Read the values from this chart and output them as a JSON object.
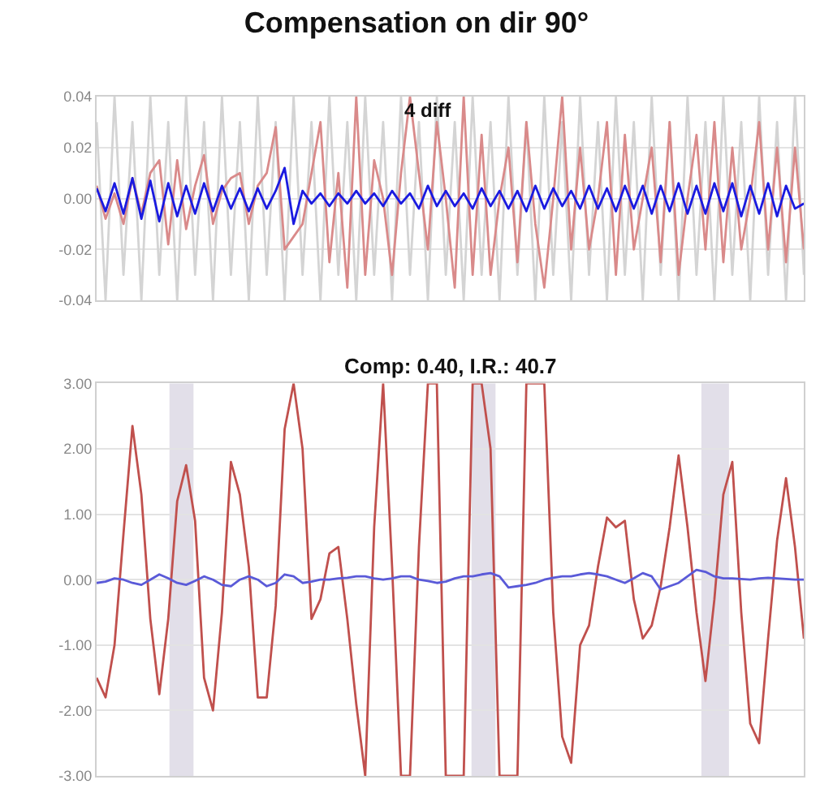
{
  "chart_data": [
    {
      "type": "line",
      "title": "Compensation on dir 90°",
      "annotations": [
        "4 diff"
      ],
      "grid": "y",
      "ylim": [
        -0.04,
        0.04
      ],
      "yticks": [
        {
          "value": -0.04,
          "label": "-0.04"
        },
        {
          "value": -0.02,
          "label": "-0.02"
        },
        {
          "value": 0,
          "label": "0.00"
        },
        {
          "value": 0.02,
          "label": "0.02"
        },
        {
          "value": 0.04,
          "label": "0.04"
        }
      ],
      "categories": [
        null,
        null,
        null,
        null,
        null,
        null,
        null,
        null,
        null,
        null,
        null,
        null,
        null,
        null,
        null,
        null,
        null,
        null,
        null,
        null,
        null,
        null,
        null,
        null,
        null,
        null,
        null,
        null,
        null,
        null,
        null,
        null,
        null,
        null,
        null,
        null,
        null,
        null,
        null,
        null,
        null,
        null,
        null,
        null,
        null,
        null,
        null,
        null,
        null,
        null,
        null,
        null,
        null,
        null,
        null,
        null,
        null,
        null,
        null,
        null,
        null,
        null,
        null,
        null,
        null,
        null,
        null,
        null,
        null,
        null,
        null,
        null,
        null,
        null,
        null,
        null,
        null,
        null,
        null,
        null
      ],
      "series": [
        {
          "color": "#d4d4d4",
          "values": [
            0.03,
            -0.04,
            0.04,
            -0.03,
            0.03,
            -0.04,
            0.04,
            -0.03,
            0.03,
            -0.04,
            0.04,
            -0.03,
            0.03,
            -0.04,
            0.04,
            -0.03,
            0.03,
            -0.04,
            0.04,
            -0.03,
            0.03,
            -0.04,
            0.04,
            -0.03,
            0.03,
            -0.04,
            0.04,
            -0.03,
            0.03,
            -0.04,
            0.04,
            -0.03,
            0.03,
            -0.04,
            0.04,
            -0.03,
            0.03,
            -0.04,
            0.04,
            -0.03,
            0.03,
            -0.04,
            0.04,
            -0.03,
            0.03,
            -0.04,
            0.04,
            -0.03,
            0.03,
            -0.04,
            0.04,
            -0.03,
            0.03,
            -0.04,
            0.04,
            -0.03,
            0.03,
            -0.04,
            0.04,
            -0.03,
            0.03,
            -0.04,
            0.04,
            -0.03,
            0.03,
            -0.04,
            0.04,
            -0.03,
            0.03,
            -0.04,
            0.04,
            -0.03,
            0.03,
            -0.04,
            0.04,
            -0.03,
            0.03,
            -0.04,
            0.04,
            -0.03
          ]
        },
        {
          "color": "#d98a8a",
          "values": [
            0.005,
            -0.008,
            0.002,
            -0.01,
            0.008,
            -0.006,
            0.01,
            0.015,
            -0.018,
            0.015,
            -0.012,
            0.005,
            0.017,
            -0.01,
            0.003,
            0.008,
            0.01,
            -0.01,
            0.005,
            0.01,
            0.028,
            -0.02,
            -0.015,
            -0.01,
            0.01,
            0.03,
            -0.025,
            0.01,
            -0.035,
            0.04,
            -0.03,
            0.015,
            0,
            -0.03,
            0.01,
            0.04,
            0.01,
            -0.02,
            0.03,
            0,
            -0.035,
            0.04,
            -0.03,
            0.025,
            -0.03,
            0,
            0.02,
            -0.025,
            0.03,
            -0.01,
            -0.035,
            0,
            0.04,
            -0.02,
            0.02,
            -0.02,
            0,
            0.03,
            -0.03,
            0.025,
            -0.02,
            0,
            0.02,
            -0.025,
            0.03,
            -0.03,
            0,
            0.025,
            -0.02,
            0.03,
            -0.025,
            0.02,
            -0.02,
            0,
            0.03,
            -0.02,
            0.02,
            -0.025,
            0.02,
            -0.02
          ]
        },
        {
          "color": "#1a1ae0",
          "values": [
            0.004,
            -0.005,
            0.006,
            -0.006,
            0.008,
            -0.008,
            0.007,
            -0.009,
            0.006,
            -0.007,
            0.005,
            -0.006,
            0.006,
            -0.005,
            0.005,
            -0.004,
            0.004,
            -0.005,
            0.004,
            -0.004,
            0.003,
            0.012,
            -0.01,
            0.003,
            -0.002,
            0.002,
            -0.003,
            0.002,
            -0.002,
            0.003,
            -0.002,
            0.002,
            -0.003,
            0.003,
            -0.002,
            0.002,
            -0.004,
            0.005,
            -0.003,
            0.003,
            -0.003,
            0.002,
            -0.004,
            0.004,
            -0.003,
            0.003,
            -0.004,
            0.003,
            -0.005,
            0.005,
            -0.004,
            0.004,
            -0.003,
            0.003,
            -0.004,
            0.005,
            -0.004,
            0.004,
            -0.005,
            0.005,
            -0.004,
            0.005,
            -0.006,
            0.005,
            -0.005,
            0.006,
            -0.006,
            0.005,
            -0.006,
            0.006,
            -0.005,
            0.006,
            -0.007,
            0.005,
            -0.006,
            0.006,
            -0.007,
            0.005,
            -0.004,
            -0.002
          ]
        }
      ]
    },
    {
      "type": "line",
      "title": "Comp: 0.40, I.R.: 40.7",
      "grid": "y",
      "ylim": [
        -3,
        3
      ],
      "yticks": [
        {
          "value": -3,
          "label": "-3.00"
        },
        {
          "value": -2,
          "label": "-2.00"
        },
        {
          "value": -1,
          "label": "-1.00"
        },
        {
          "value": 0,
          "label": "0.00"
        },
        {
          "value": 1,
          "label": "1.00"
        },
        {
          "value": 2,
          "label": "2.00"
        },
        {
          "value": 3,
          "label": "3.00"
        }
      ],
      "categories": [
        null,
        null,
        null,
        null,
        null,
        null,
        null,
        null,
        null,
        null,
        null,
        null,
        null,
        null,
        null,
        null,
        null,
        null,
        null,
        null,
        null,
        null,
        null,
        null,
        null,
        null,
        null,
        null,
        null,
        null,
        null,
        null,
        null,
        null,
        null,
        null,
        null,
        null,
        null,
        null,
        null,
        null,
        null,
        null,
        null,
        null,
        null,
        null,
        null,
        null,
        null,
        null,
        null,
        null,
        null,
        null,
        null,
        null,
        null,
        null,
        null,
        null,
        null,
        null,
        null,
        null,
        null,
        null,
        null,
        null,
        null,
        null,
        null,
        null,
        null,
        null,
        null,
        null,
        null,
        null
      ],
      "series": [
        {
          "color": "#c0504d",
          "values": [
            -1.5,
            -1.8,
            -1.0,
            0.7,
            2.35,
            1.3,
            -0.6,
            -1.75,
            -0.6,
            1.2,
            1.75,
            0.9,
            -1.5,
            -2.0,
            -0.5,
            1.8,
            1.3,
            0.2,
            -1.8,
            -1.8,
            -0.4,
            2.3,
            3,
            2.0,
            -0.6,
            -0.3,
            0.4,
            0.5,
            -0.6,
            -1.9,
            -3,
            0.8,
            3,
            0.2,
            -3,
            -3,
            0.5,
            3,
            3,
            -3,
            -3,
            -3,
            3,
            3,
            2.0,
            -3,
            -3,
            -3,
            3,
            3,
            3,
            -0.5,
            -2.4,
            -2.8,
            -1.0,
            -0.7,
            0.2,
            0.95,
            0.8,
            0.9,
            -0.3,
            -0.9,
            -0.7,
            -0.1,
            0.8,
            1.9,
            0.8,
            -0.5,
            -1.55,
            -0.3,
            1.3,
            1.8,
            -0.5,
            -2.2,
            -2.5,
            -0.9,
            0.6,
            1.55,
            0.5,
            -0.9
          ]
        },
        {
          "color": "#5a5ad8",
          "values": [
            -0.05,
            -0.03,
            0.02,
            0,
            -0.05,
            -0.08,
            0,
            0.08,
            0.02,
            -0.05,
            -0.08,
            -0.02,
            0.05,
            0,
            -0.08,
            -0.1,
            0,
            0.05,
            0,
            -0.1,
            -0.05,
            0.08,
            0.05,
            -0.05,
            -0.03,
            0,
            0,
            0.02,
            0.03,
            0.05,
            0.05,
            0.02,
            0,
            0.02,
            0.05,
            0.05,
            0,
            -0.02,
            -0.05,
            -0.03,
            0.02,
            0.05,
            0.05,
            0.08,
            0.1,
            0.05,
            -0.12,
            -0.1,
            -0.08,
            -0.05,
            0,
            0.03,
            0.05,
            0.05,
            0.08,
            0.1,
            0.08,
            0.05,
            0,
            -0.05,
            0.02,
            0.1,
            0.05,
            -0.15,
            -0.1,
            -0.05,
            0.05,
            0.15,
            0.12,
            0.05,
            0.02,
            0.02,
            0.01,
            0,
            0.02,
            0.03,
            0.02,
            0.01,
            0,
            0
          ]
        }
      ]
    }
  ]
}
